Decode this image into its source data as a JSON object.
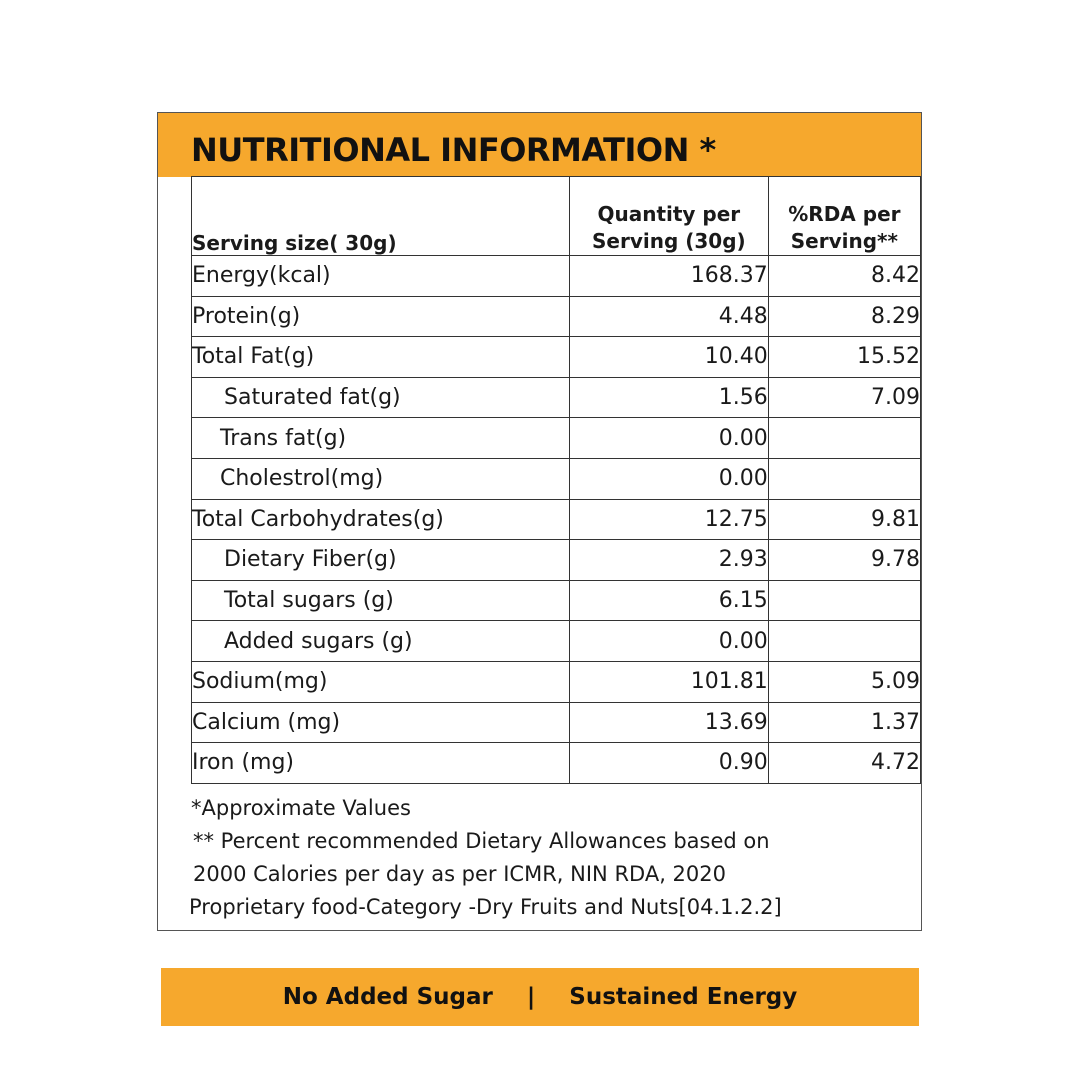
{
  "title": "NUTRITIONAL INFORMATION *",
  "table": {
    "headers": [
      "Serving size( 30g)",
      "Quantity per Serving (30g)",
      "%RDA per Serving**"
    ],
    "header_lines": {
      "qty": [
        "Quantity per",
        "Serving (30g)"
      ],
      "rda": [
        "%RDA per",
        "Serving**"
      ]
    },
    "rows": [
      {
        "nutrient": "Energy(kcal)",
        "qty": "168.37",
        "rda": "8.42"
      },
      {
        "nutrient": "Protein(g)",
        "qty": "4.48",
        "rda": "8.29"
      },
      {
        "nutrient": "Total Fat(g)",
        "qty": "10.40",
        "rda": "15.52"
      },
      {
        "nutrient": "Saturated fat(g)",
        "qty": "1.56",
        "rda": "7.09"
      },
      {
        "nutrient": "Trans fat(g)",
        "qty": "0.00",
        "rda": ""
      },
      {
        "nutrient": "Cholestrol(mg)",
        "qty": "0.00",
        "rda": ""
      },
      {
        "nutrient": "Total Carbohydrates(g)",
        "qty": "12.75",
        "rda": "9.81"
      },
      {
        "nutrient": "Dietary Fiber(g)",
        "qty": "2.93",
        "rda": "9.78"
      },
      {
        "nutrient": "Total sugars (g)",
        "qty": "6.15",
        "rda": ""
      },
      {
        "nutrient": "Added sugars (g)",
        "qty": "0.00",
        "rda": ""
      },
      {
        "nutrient": "Sodium(mg)",
        "qty": "101.81",
        "rda": "5.09"
      },
      {
        "nutrient": "Calcium (mg)",
        "qty": "13.69",
        "rda": "1.37"
      },
      {
        "nutrient": "Iron (mg)",
        "qty": "0.90",
        "rda": "4.72"
      }
    ]
  },
  "notes": [
    "*Approximate Values",
    "** Percent recommended Dietary Allowances based on",
    "2000 Calories per day as per ICMR, NIN RDA, 2020",
    "Proprietary food-Category -Dry Fruits and Nuts[04.1.2.2]"
  ],
  "banner": {
    "left": "No Added Sugar",
    "separator": "|",
    "right": "Sustained Energy"
  },
  "colors": {
    "accent": "#f6a82d",
    "border": "#333333",
    "text": "#1a1a1a"
  }
}
